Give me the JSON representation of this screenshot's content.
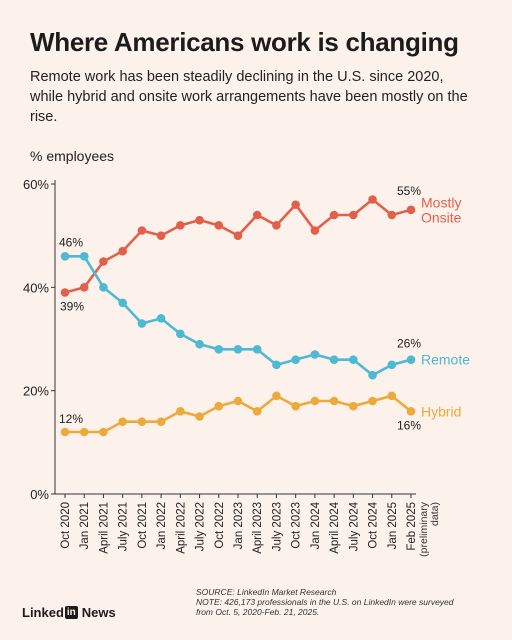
{
  "header": {
    "title": "Where Americans work is changing",
    "subtitle": "Remote work has been steadily declining in the U.S. since 2020, while hybrid and onsite work arrangements have been mostly on the rise.",
    "unit_label": "% employees"
  },
  "footer": {
    "source": "SOURCE: LinkedIn Market Research",
    "note_line1": "NOTE: 426,173 professionals in the U.S. on LinkedIn were surveyed",
    "note_line2": "from Oct. 5, 2020-Feb. 21, 2025.",
    "logo_text_left": "Linked",
    "logo_text_box": "in",
    "logo_text_right": "News"
  },
  "chart_data": {
    "type": "line",
    "categories": [
      "Oct 2020",
      "Jan 2021",
      "April 2021",
      "July 2021",
      "Oct 2021",
      "Jan 2022",
      "April 2022",
      "July 2022",
      "Oct 2022",
      "Jan 2023",
      "April 2023",
      "July 2023",
      "Oct 2023",
      "Jan 2024",
      "April 2024",
      "July 2024",
      "Oct 2024",
      "Jan 2025",
      "Feb 2025"
    ],
    "last_category_note": [
      "(preliminary",
      "data)"
    ],
    "ylim": [
      0,
      60
    ],
    "yticks": [
      0,
      20,
      40,
      60
    ],
    "ytick_labels": [
      "0%",
      "20%",
      "40%",
      "60%"
    ],
    "series": [
      {
        "name": "Mostly Onsite",
        "label_lines": [
          "Mostly",
          "Onsite"
        ],
        "color": "#e2604a",
        "values": [
          39,
          40,
          45,
          47,
          51,
          50,
          52,
          53,
          52,
          50,
          54,
          52,
          56,
          51,
          54,
          54,
          57,
          54,
          55
        ],
        "start_label": "39%",
        "end_label": "55%"
      },
      {
        "name": "Remote",
        "label_lines": [
          "Remote"
        ],
        "color": "#4db9d3",
        "values": [
          46,
          46,
          40,
          37,
          33,
          34,
          31,
          29,
          28,
          28,
          28,
          25,
          26,
          27,
          26,
          26,
          23,
          25,
          26
        ],
        "start_label": "46%",
        "end_label": "26%"
      },
      {
        "name": "Hybrid",
        "label_lines": [
          "Hybrid"
        ],
        "color": "#eca93c",
        "values": [
          12,
          12,
          12,
          14,
          14,
          14,
          16,
          15,
          17,
          18,
          16,
          19,
          17,
          18,
          18,
          17,
          18,
          19,
          16
        ],
        "start_label": "12%",
        "end_label": "16%"
      }
    ],
    "grid": false
  }
}
